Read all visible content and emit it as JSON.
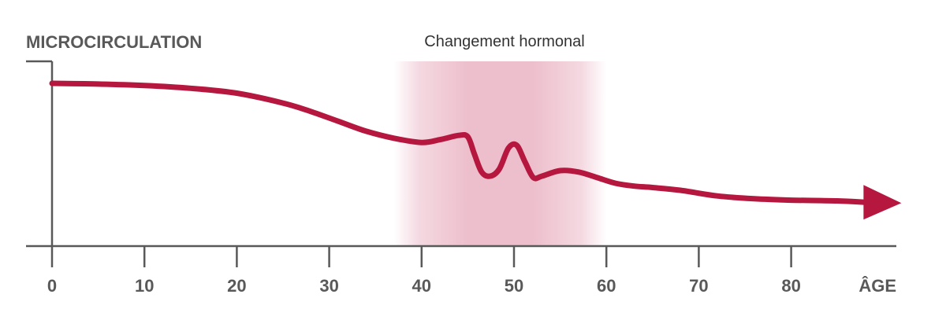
{
  "chart_data": {
    "type": "line",
    "ylabel": "MICROCIRCULATION",
    "xlabel": "ÂGE",
    "annotation": "Changement hormonal",
    "xlim": [
      0,
      92
    ],
    "ylim": [
      0,
      100
    ],
    "xticks": [
      "0",
      "10",
      "20",
      "30",
      "40",
      "50",
      "60",
      "70",
      "80"
    ],
    "highlight_range": [
      37,
      60
    ],
    "grid": false,
    "legend": "none",
    "series": [
      {
        "x": [
          0,
          5,
          10,
          15,
          20,
          25,
          28,
          31,
          34,
          37,
          40,
          42,
          44,
          45,
          45.7,
          46.5,
          47.4,
          48.4,
          49.4,
          50.3,
          51.2,
          52.1,
          53,
          55,
          57,
          59,
          61,
          63,
          65,
          68,
          72,
          76,
          80,
          85,
          88
        ],
        "y": [
          100,
          99.5,
          98.5,
          96.5,
          93,
          86,
          80,
          73,
          66,
          61,
          58,
          60,
          63,
          62,
          50,
          37,
          34,
          39,
          54,
          56,
          44,
          33,
          34,
          38,
          37,
          33,
          29,
          27,
          26,
          24,
          20,
          18,
          17,
          16.5,
          15.5
        ]
      }
    ],
    "colors": {
      "line": "#b5173f",
      "highlight": "#e7a9bb",
      "axis": "#595959"
    }
  }
}
